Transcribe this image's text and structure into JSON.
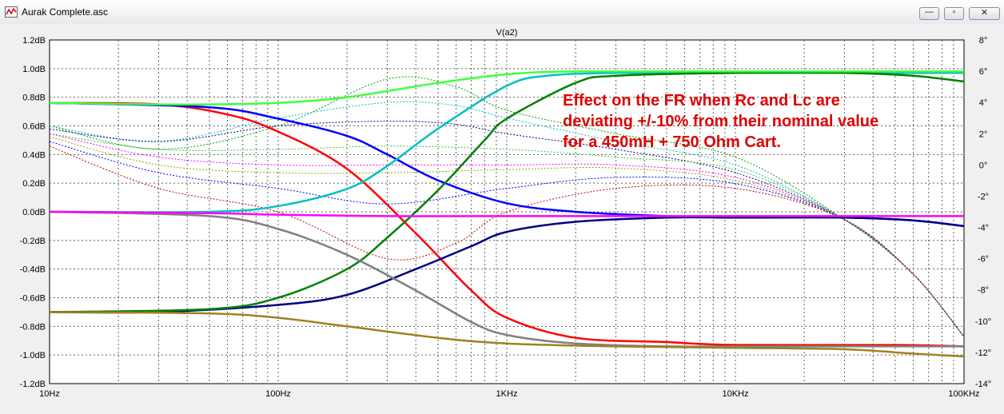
{
  "window": {
    "title": "Aurak Complete.asc",
    "icon": "waveform-icon",
    "buttons": [
      {
        "name": "minimize",
        "glyph": "—"
      },
      {
        "name": "maximize",
        "glyph": "▫"
      },
      {
        "name": "close",
        "glyph": "✕"
      }
    ]
  },
  "chart_data": {
    "type": "line",
    "title": "V(a2)",
    "title_color": "#00c000",
    "x_scale": "log",
    "xlim": [
      10,
      100000
    ],
    "x_ticks": [
      "10Hz",
      "100Hz",
      "1KHz",
      "10KHz",
      "100KHz"
    ],
    "ylim": [
      -1.2,
      1.2
    ],
    "y_ticks": [
      "1.2dB",
      "1.0dB",
      "0.8dB",
      "0.6dB",
      "0.4dB",
      "0.2dB",
      "0.0dB",
      "-0.2dB",
      "-0.4dB",
      "-0.6dB",
      "-0.8dB",
      "-1.0dB",
      "-1.2dB"
    ],
    "y2lim": [
      -14,
      8
    ],
    "y2_ticks": [
      "8°",
      "6°",
      "4°",
      "2°",
      "0°",
      "-2°",
      "-4°",
      "-6°",
      "-8°",
      "-10°",
      "-12°",
      "-14°"
    ],
    "grid": true,
    "annotation": {
      "lines": [
        "Effect on the FR when Rc and Lc are",
        "deviating +/-10% from their nominal value",
        "for a 450mH + 750 Ohm Cart."
      ],
      "color": "#e00000"
    },
    "series": [
      {
        "axis": "left",
        "color": "#ff0000",
        "points": [
          [
            10,
            0.76
          ],
          [
            30,
            0.75
          ],
          [
            60,
            0.68
          ],
          [
            100,
            0.56
          ],
          [
            200,
            0.3
          ],
          [
            400,
            -0.15
          ],
          [
            700,
            -0.55
          ],
          [
            1000,
            -0.74
          ],
          [
            2000,
            -0.88
          ],
          [
            5000,
            -0.91
          ],
          [
            10000,
            -0.93
          ],
          [
            50000,
            -0.93
          ],
          [
            100000,
            -0.94
          ]
        ]
      },
      {
        "axis": "left",
        "color": "#0000ff",
        "points": [
          [
            10,
            0.76
          ],
          [
            50,
            0.73
          ],
          [
            100,
            0.65
          ],
          [
            200,
            0.53
          ],
          [
            300,
            0.4
          ],
          [
            500,
            0.22
          ],
          [
            1000,
            0.06
          ],
          [
            2000,
            0.0
          ],
          [
            5000,
            -0.03
          ],
          [
            10000,
            -0.04
          ],
          [
            30000,
            -0.04
          ],
          [
            60000,
            -0.06
          ],
          [
            100000,
            -0.1
          ]
        ]
      },
      {
        "axis": "left",
        "color": "#000080",
        "points": [
          [
            10,
            -0.7
          ],
          [
            30,
            -0.7
          ],
          [
            100,
            -0.65
          ],
          [
            200,
            -0.58
          ],
          [
            400,
            -0.4
          ],
          [
            700,
            -0.24
          ],
          [
            1000,
            -0.14
          ],
          [
            2000,
            -0.07
          ],
          [
            5000,
            -0.04
          ],
          [
            10000,
            -0.04
          ],
          [
            30000,
            -0.04
          ],
          [
            60000,
            -0.06
          ],
          [
            100000,
            -0.1
          ]
        ]
      },
      {
        "axis": "left",
        "color": "#00c0c0",
        "points": [
          [
            10,
            0.0
          ],
          [
            50,
            0.0
          ],
          [
            100,
            0.04
          ],
          [
            200,
            0.16
          ],
          [
            300,
            0.32
          ],
          [
            500,
            0.58
          ],
          [
            1000,
            0.88
          ],
          [
            1500,
            0.95
          ],
          [
            3000,
            0.97
          ],
          [
            10000,
            0.97
          ],
          [
            100000,
            0.97
          ]
        ]
      },
      {
        "axis": "left",
        "color": "#008000",
        "points": [
          [
            10,
            -0.7
          ],
          [
            50,
            -0.68
          ],
          [
            100,
            -0.6
          ],
          [
            200,
            -0.4
          ],
          [
            300,
            -0.18
          ],
          [
            500,
            0.15
          ],
          [
            800,
            0.5
          ],
          [
            1000,
            0.65
          ],
          [
            2000,
            0.9
          ],
          [
            3000,
            0.95
          ],
          [
            10000,
            0.97
          ],
          [
            30000,
            0.97
          ],
          [
            60000,
            0.95
          ],
          [
            100000,
            0.91
          ]
        ]
      },
      {
        "axis": "left",
        "color": "#808080",
        "points": [
          [
            10,
            0.0
          ],
          [
            50,
            -0.03
          ],
          [
            100,
            -0.12
          ],
          [
            200,
            -0.3
          ],
          [
            400,
            -0.55
          ],
          [
            700,
            -0.77
          ],
          [
            1000,
            -0.86
          ],
          [
            2000,
            -0.92
          ],
          [
            5000,
            -0.94
          ],
          [
            10000,
            -0.94
          ],
          [
            100000,
            -0.94
          ]
        ]
      },
      {
        "axis": "left",
        "color": "#ff00ff",
        "points": [
          [
            10,
            0.0
          ],
          [
            50,
            -0.01
          ],
          [
            100,
            -0.02
          ],
          [
            300,
            -0.03
          ],
          [
            1000,
            -0.03
          ],
          [
            10000,
            -0.03
          ],
          [
            100000,
            -0.03
          ]
        ]
      },
      {
        "axis": "left",
        "color": "#a08020",
        "points": [
          [
            10,
            -0.7
          ],
          [
            50,
            -0.71
          ],
          [
            100,
            -0.74
          ],
          [
            200,
            -0.8
          ],
          [
            500,
            -0.88
          ],
          [
            1000,
            -0.92
          ],
          [
            3000,
            -0.94
          ],
          [
            10000,
            -0.95
          ],
          [
            30000,
            -0.96
          ],
          [
            60000,
            -0.99
          ],
          [
            100000,
            -1.01
          ]
        ]
      },
      {
        "axis": "left",
        "color": "#40ff40",
        "points": [
          [
            10,
            0.76
          ],
          [
            30,
            0.75
          ],
          [
            50,
            0.75
          ],
          [
            100,
            0.76
          ],
          [
            200,
            0.8
          ],
          [
            500,
            0.9
          ],
          [
            1000,
            0.96
          ],
          [
            2000,
            0.98
          ],
          [
            10000,
            0.98
          ],
          [
            100000,
            0.98
          ]
        ]
      }
    ],
    "phase_series": [
      {
        "axis": "right",
        "color": "#00a000",
        "points": [
          [
            10,
            2.5
          ],
          [
            30,
            1.0
          ],
          [
            100,
            2.5
          ],
          [
            300,
            5.5
          ],
          [
            600,
            5.0
          ],
          [
            1000,
            3.5
          ],
          [
            3000,
            2.0
          ],
          [
            10000,
            0.5
          ],
          [
            30000,
            -3.5
          ],
          [
            60000,
            -7
          ],
          [
            100000,
            -11
          ]
        ]
      },
      {
        "axis": "right",
        "color": "#00c0c0",
        "points": [
          [
            10,
            2.5
          ],
          [
            30,
            1.5
          ],
          [
            100,
            3.0
          ],
          [
            300,
            4.0
          ],
          [
            600,
            3.8
          ],
          [
            1000,
            3.0
          ],
          [
            3000,
            1.5
          ],
          [
            10000,
            0
          ],
          [
            30000,
            -3.5
          ],
          [
            60000,
            -7
          ],
          [
            100000,
            -11
          ]
        ]
      },
      {
        "axis": "right",
        "color": "#000080",
        "points": [
          [
            10,
            2.3
          ],
          [
            30,
            1.5
          ],
          [
            100,
            2.5
          ],
          [
            300,
            2.8
          ],
          [
            600,
            2.6
          ],
          [
            1000,
            2.0
          ],
          [
            3000,
            1.0
          ],
          [
            10000,
            -0.5
          ],
          [
            30000,
            -3.5
          ],
          [
            60000,
            -7
          ],
          [
            100000,
            -11
          ]
        ]
      },
      {
        "axis": "right",
        "color": "#40c040",
        "points": [
          [
            10,
            2.0
          ],
          [
            30,
            1.0
          ],
          [
            100,
            1.0
          ],
          [
            300,
            1.2
          ],
          [
            1000,
            1.0
          ],
          [
            3000,
            0.5
          ],
          [
            10000,
            -0.3
          ],
          [
            30000,
            -3.5
          ],
          [
            60000,
            -7
          ],
          [
            100000,
            -11
          ]
        ]
      },
      {
        "axis": "right",
        "color": "#ff00ff",
        "points": [
          [
            10,
            2.0
          ],
          [
            30,
            0.5
          ],
          [
            100,
            0
          ],
          [
            300,
            0
          ],
          [
            1000,
            0
          ],
          [
            3000,
            0
          ],
          [
            10000,
            -0.8
          ],
          [
            30000,
            -3.5
          ],
          [
            60000,
            -7
          ],
          [
            100000,
            -11
          ]
        ]
      },
      {
        "axis": "right",
        "color": "#a0a000",
        "points": [
          [
            10,
            1.8
          ],
          [
            30,
            0
          ],
          [
            100,
            -0.5
          ],
          [
            300,
            -0.5
          ],
          [
            1000,
            -0.3
          ],
          [
            3000,
            -0.2
          ],
          [
            10000,
            -1.0
          ],
          [
            30000,
            -3.5
          ],
          [
            60000,
            -7
          ],
          [
            100000,
            -11
          ]
        ]
      },
      {
        "axis": "right",
        "color": "#0000ff",
        "points": [
          [
            10,
            1.5
          ],
          [
            30,
            -0.5
          ],
          [
            100,
            -1.5
          ],
          [
            300,
            -2.5
          ],
          [
            1000,
            -1.5
          ],
          [
            3000,
            -0.8
          ],
          [
            10000,
            -1.2
          ],
          [
            30000,
            -3.5
          ],
          [
            60000,
            -7
          ],
          [
            100000,
            -11
          ]
        ]
      },
      {
        "axis": "right",
        "color": "#c00000",
        "points": [
          [
            10,
            1.2
          ],
          [
            30,
            -1.5
          ],
          [
            100,
            -3.0
          ],
          [
            300,
            -6.0
          ],
          [
            600,
            -5.0
          ],
          [
            1000,
            -3.0
          ],
          [
            3000,
            -1.5
          ],
          [
            10000,
            -1.5
          ],
          [
            30000,
            -3.5
          ],
          [
            60000,
            -7
          ],
          [
            100000,
            -11
          ]
        ]
      }
    ]
  }
}
